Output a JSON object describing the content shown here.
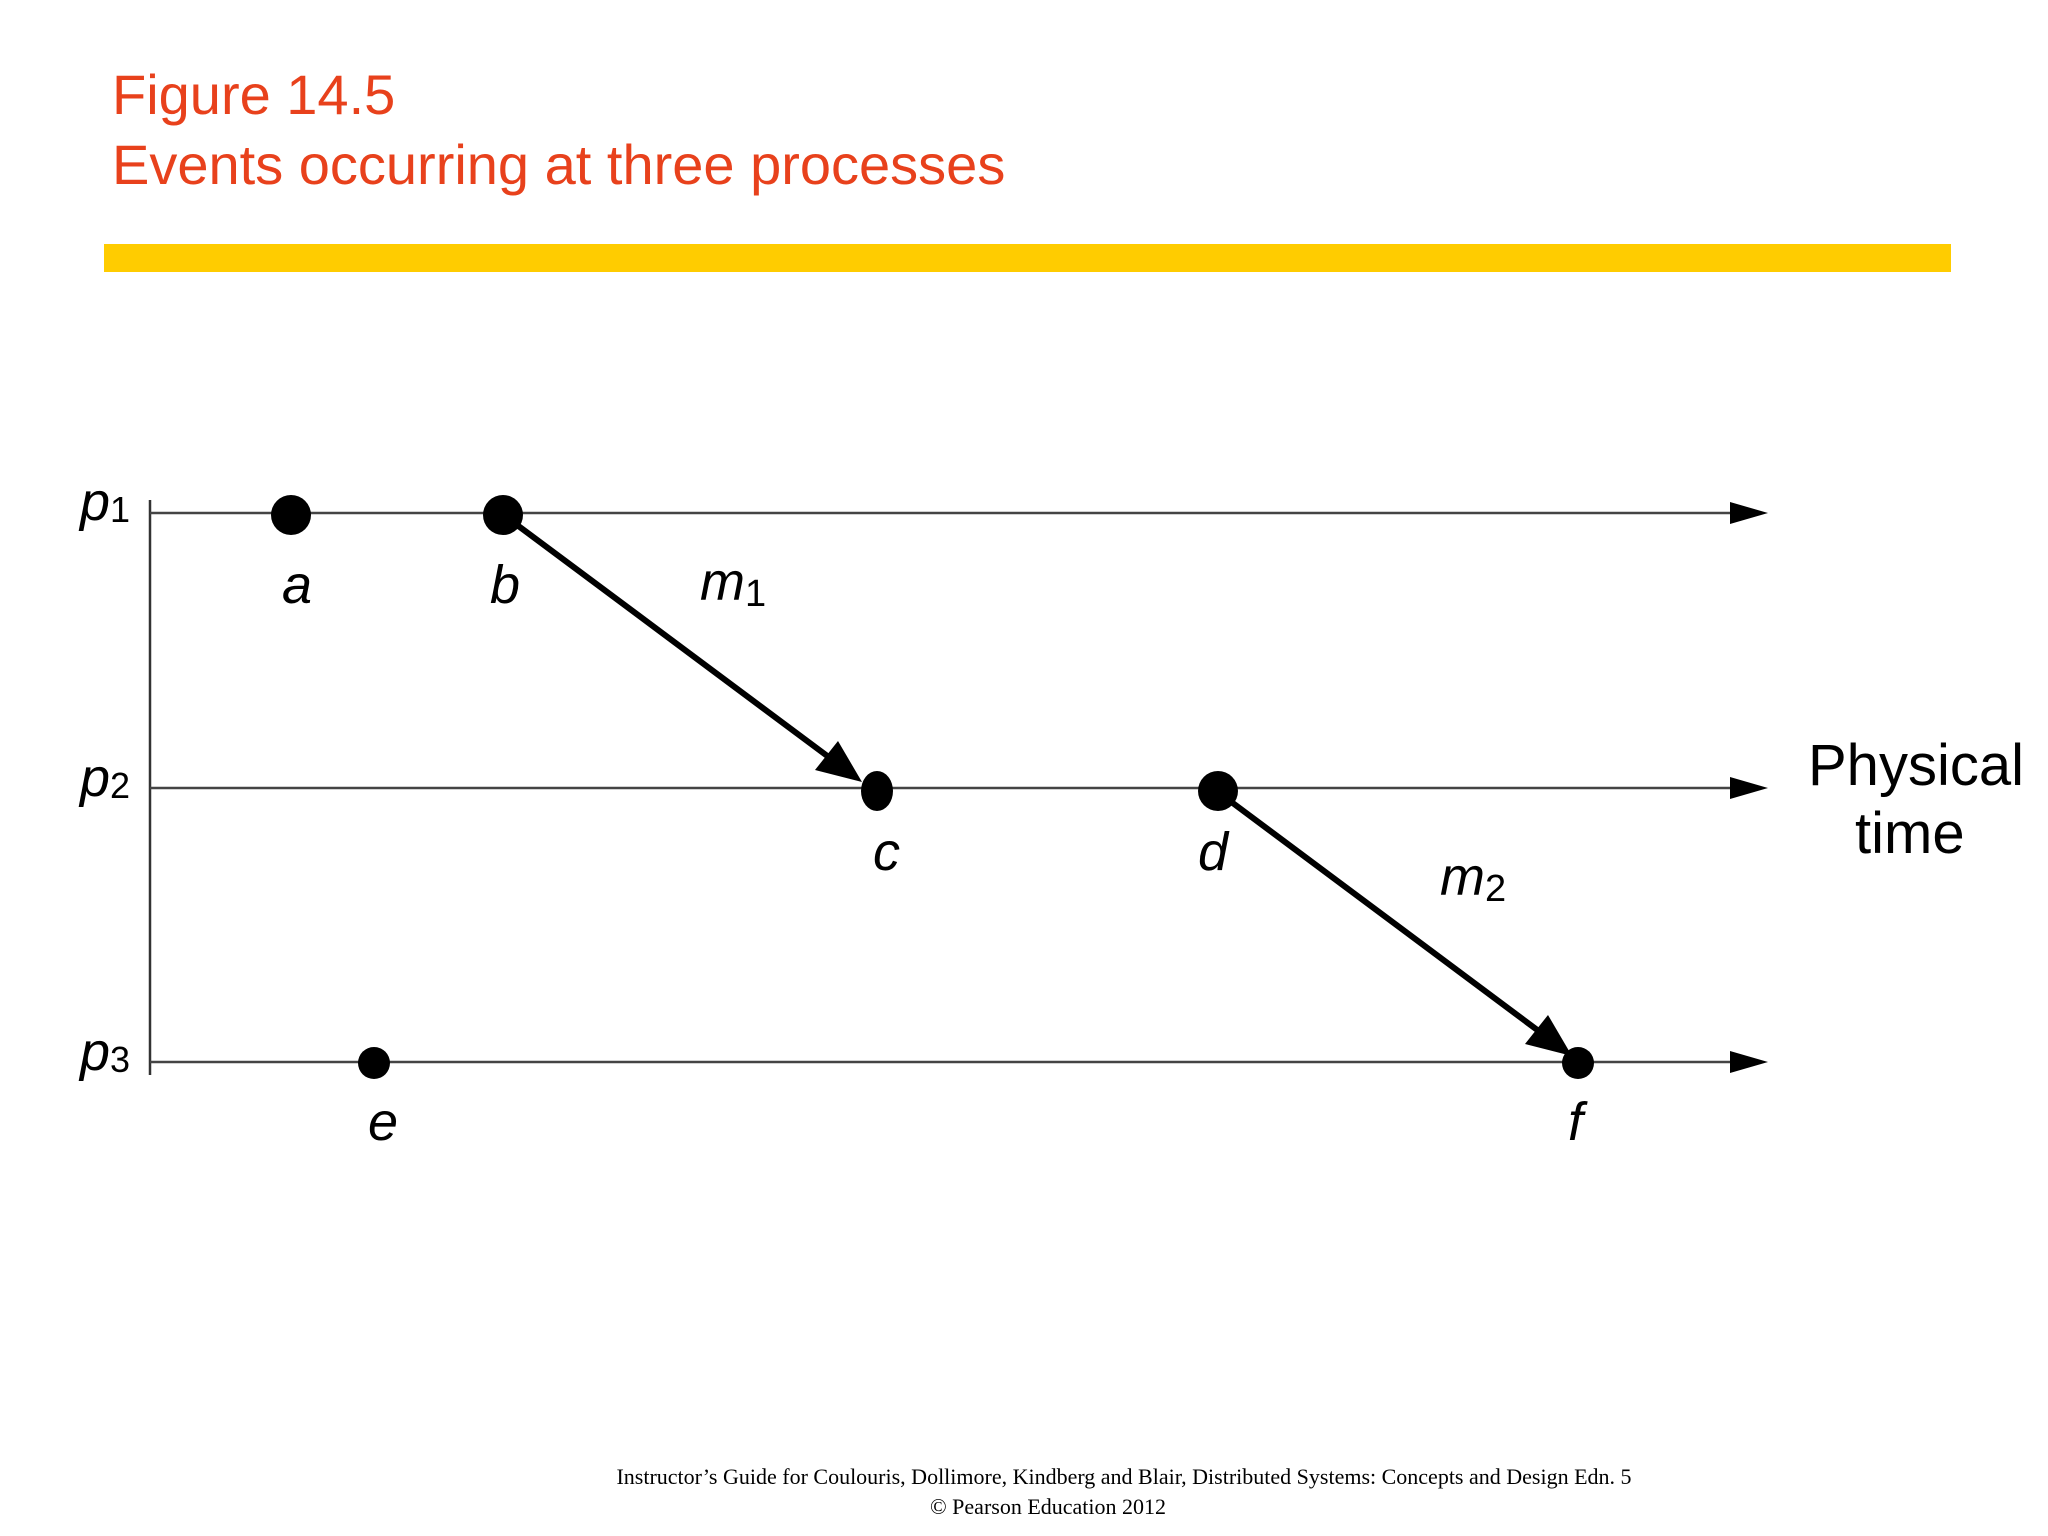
{
  "slide": {
    "title_line1": "Figure 14.5",
    "title_line2": "Events occurring at three processes",
    "title_color": "#e8411c",
    "bar_color": "#ffcc00"
  },
  "diagram": {
    "processes": [
      {
        "label": "p",
        "subscript": "1"
      },
      {
        "label": "p",
        "subscript": "2"
      },
      {
        "label": "p",
        "subscript": "3"
      }
    ],
    "events": [
      {
        "label": "a",
        "process": "p1"
      },
      {
        "label": "b",
        "process": "p1"
      },
      {
        "label": "c",
        "process": "p2"
      },
      {
        "label": "d",
        "process": "p2"
      },
      {
        "label": "e",
        "process": "p3"
      },
      {
        "label": "f",
        "process": "p3"
      }
    ],
    "messages": [
      {
        "label": "m",
        "subscript": "1",
        "from": "b",
        "to": "c"
      },
      {
        "label": "m",
        "subscript": "2",
        "from": "d",
        "to": "f"
      }
    ],
    "axis_label_line1": "Physical",
    "axis_label_line2": "time"
  },
  "footer": {
    "line1": "Instructor’s Guide for  Coulouris, Dollimore, Kindberg and Blair,  Distributed Systems: Concepts and Design   Edn. 5",
    "line2": "©  Pearson Education 2012"
  }
}
